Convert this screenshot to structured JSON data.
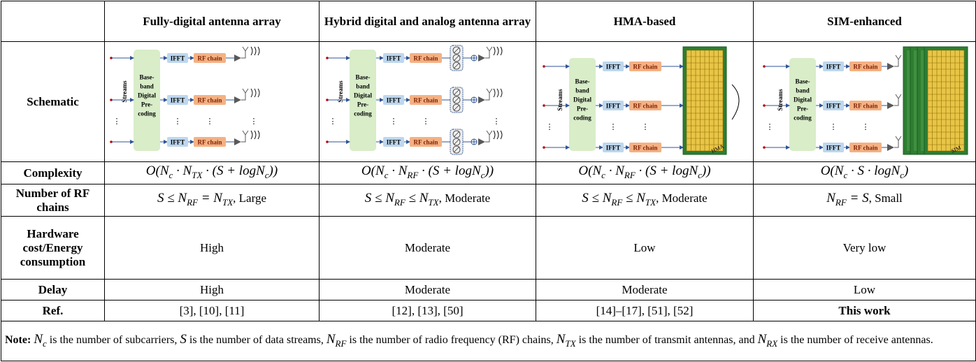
{
  "table": {
    "columns": [
      "Fully-digital antenna array",
      "Hybrid digital and analog antenna array",
      "HMA-based",
      "SIM-enhanced"
    ],
    "rows": [
      {
        "label": "Schematic"
      },
      {
        "label": "Complexity",
        "cells": [
          [
            {
              "math": [
                "O(N",
                "c",
                " · N",
                "TX",
                " · (S + logN",
                "c",
                "))"
              ]
            }
          ],
          [
            {
              "math": [
                "O(N",
                "c",
                " · N",
                "RF",
                " · (S + logN",
                "c",
                "))"
              ]
            }
          ],
          [
            {
              "math": [
                "O(N",
                "c",
                " · N",
                "RF",
                " · (S + logN",
                "c",
                "))"
              ]
            }
          ],
          [
            {
              "math": [
                "O(N",
                "c",
                " · S · logN",
                "c",
                ")"
              ]
            }
          ]
        ]
      },
      {
        "label": "Number of RF chains",
        "cells": [
          [
            {
              "math": [
                "S ≤ N",
                "RF",
                " = N",
                "TX"
              ]
            },
            {
              "text": ", Large"
            }
          ],
          [
            {
              "math": [
                "S ≤ N",
                "RF",
                " ≤ N",
                "TX"
              ]
            },
            {
              "text": ", Moderate"
            }
          ],
          [
            {
              "math": [
                "S ≤ N",
                "RF",
                " ≤ N",
                "TX"
              ]
            },
            {
              "text": ", Moderate"
            }
          ],
          [
            {
              "math": [
                "N",
                "RF",
                " = S"
              ]
            },
            {
              "text": ", Small"
            }
          ]
        ]
      },
      {
        "label": "Hardware cost/Energy consumption",
        "cells": [
          "High",
          "Moderate",
          "Low",
          "Very low"
        ]
      },
      {
        "label": "Delay",
        "cells": [
          "High",
          "Moderate",
          "Moderate",
          "Low"
        ]
      },
      {
        "label": "Ref.",
        "cells": [
          "[3], [10], [11]",
          "[12], [13], [50]",
          "[14]–[17], [51], [52]",
          [
            {
              "bold": "This work"
            }
          ]
        ]
      }
    ]
  },
  "schematic": {
    "streams": "Streams",
    "baseband": [
      "Base-",
      "band",
      "Digital",
      "Pre-",
      "coding"
    ],
    "ifft": "IFFT",
    "rf": "RF chain",
    "vdots": "⋮",
    "hma": "HMA",
    "sim": "SIM"
  },
  "note": {
    "label": "Note:",
    "parts": [
      {
        "math": [
          "N",
          "c"
        ]
      },
      {
        "text": " is the number of subcarriers, "
      },
      {
        "math": [
          "S"
        ]
      },
      {
        "text": " is the number of data streams, "
      },
      {
        "math": [
          "N",
          "RF"
        ]
      },
      {
        "text": " is the number of radio frequency (RF) chains, "
      },
      {
        "math": [
          "N",
          "TX"
        ]
      },
      {
        "text": " is the number of transmit antennas, and "
      },
      {
        "math": [
          "N",
          "RX"
        ]
      },
      {
        "text": " is the number of receive antennas."
      }
    ]
  }
}
